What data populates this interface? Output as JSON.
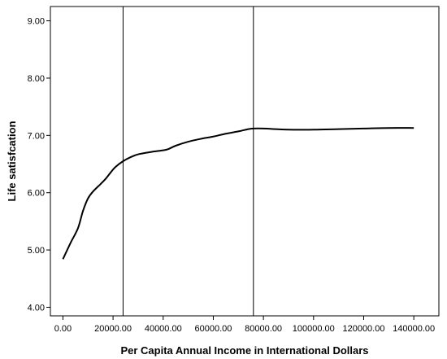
{
  "chart_data": {
    "type": "line",
    "title": "",
    "xlabel": "Per Capita Annual Income in International Dollars",
    "ylabel": "Life satisfcation",
    "xlim": [
      -5000,
      150000
    ],
    "ylim": [
      3.85,
      9.25
    ],
    "x_ticks": [
      0,
      20000,
      40000,
      60000,
      80000,
      100000,
      120000,
      140000
    ],
    "x_tick_labels": [
      "0.00",
      "20000.00",
      "40000.00",
      "60000.00",
      "80000.00",
      "100000.00",
      "120000.00",
      "140000.00"
    ],
    "y_ticks": [
      4,
      5,
      6,
      7,
      8,
      9
    ],
    "y_tick_labels": [
      "4.00",
      "5.00",
      "6.00",
      "7.00",
      "8.00",
      "9.00"
    ],
    "reference_lines_x": [
      24000,
      76000
    ],
    "grid": false,
    "legend": "none",
    "series": [
      {
        "x": [
          0,
          3000,
          6000,
          8000,
          10000,
          12000,
          15000,
          17000,
          19000,
          21000,
          24000,
          27000,
          30000,
          35000,
          40000,
          42000,
          45000,
          50000,
          55000,
          60000,
          65000,
          70000,
          74000,
          76000,
          80000,
          85000,
          90000,
          100000,
          110000,
          120000,
          130000,
          140000
        ],
        "y": [
          4.84,
          5.12,
          5.38,
          5.68,
          5.9,
          6.02,
          6.15,
          6.24,
          6.35,
          6.45,
          6.55,
          6.62,
          6.67,
          6.71,
          6.74,
          6.76,
          6.82,
          6.89,
          6.94,
          6.98,
          7.03,
          7.07,
          7.11,
          7.12,
          7.12,
          7.11,
          7.1,
          7.1,
          7.11,
          7.12,
          7.13,
          7.13
        ]
      }
    ],
    "colors": {
      "line": "#000000",
      "frame": "#000000",
      "background": "#ffffff"
    }
  }
}
